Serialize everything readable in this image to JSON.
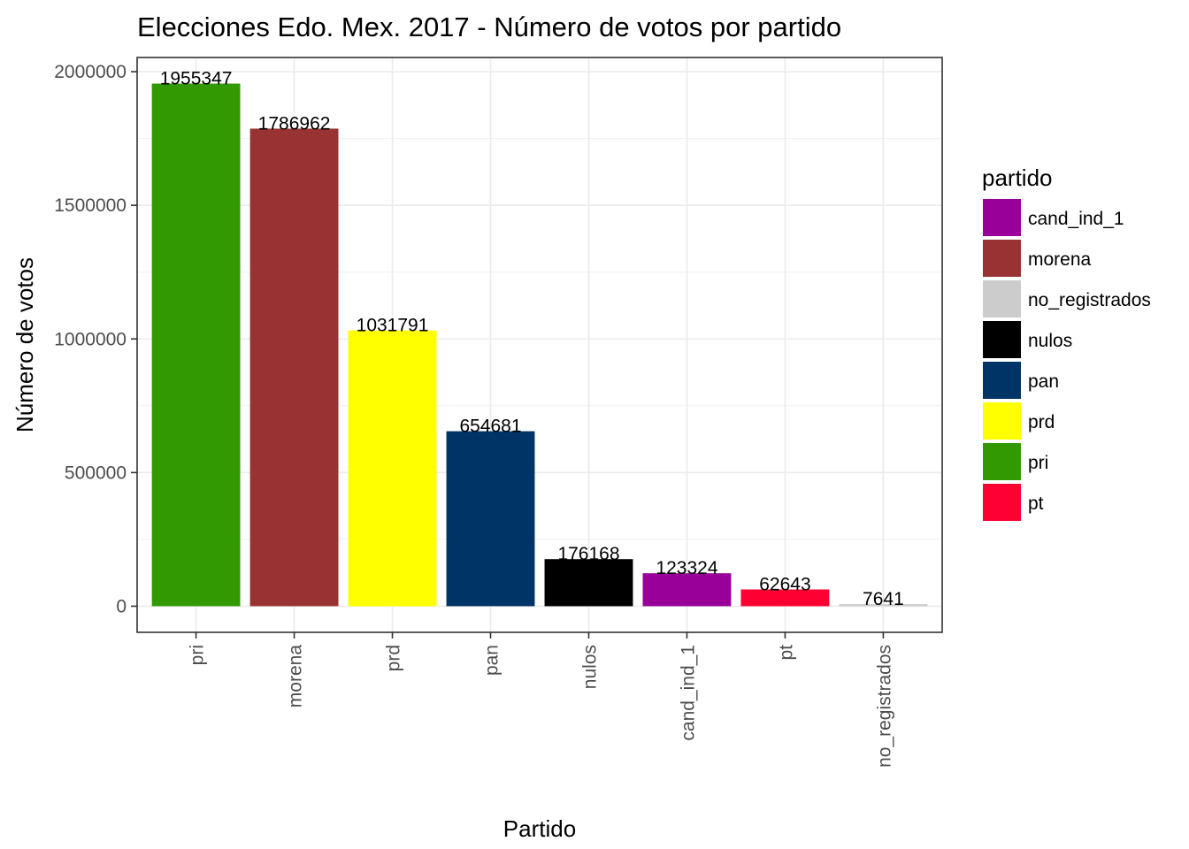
{
  "chart_data": {
    "type": "bar",
    "title": "Elecciones Edo. Mex. 2017 - Número de votos por partido",
    "xlabel": "Partido",
    "ylabel": "Número de votos",
    "categories": [
      "pri",
      "morena",
      "prd",
      "pan",
      "nulos",
      "cand_ind_1",
      "pt",
      "no_registrados"
    ],
    "values": [
      1955347,
      1786962,
      1031791,
      654681,
      176168,
      123324,
      62643,
      7641
    ],
    "value_labels": [
      "1955347",
      "1786962",
      "1031791",
      "654681",
      "176168",
      "123324",
      "62643",
      "7641"
    ],
    "y_ticks": [
      0,
      500000,
      1000000,
      1500000,
      2000000
    ],
    "y_tick_labels": [
      "0",
      "500000",
      "1000000",
      "1500000",
      "2000000"
    ],
    "ylim": [
      -97767,
      2053114
    ],
    "grid": true,
    "legend": {
      "title": "partido",
      "placement": "right",
      "items": [
        {
          "label": "cand_ind_1",
          "color": "#990099"
        },
        {
          "label": "morena",
          "color": "#993333"
        },
        {
          "label": "no_registrados",
          "color": "#cccccc"
        },
        {
          "label": "nulos",
          "color": "#000000"
        },
        {
          "label": "pan",
          "color": "#003366"
        },
        {
          "label": "prd",
          "color": "#ffff00"
        },
        {
          "label": "pri",
          "color": "#339900"
        },
        {
          "label": "pt",
          "color": "#ff0033"
        }
      ]
    },
    "bar_colors": {
      "pri": "#339900",
      "morena": "#993333",
      "prd": "#ffff00",
      "pan": "#003366",
      "nulos": "#000000",
      "cand_ind_1": "#990099",
      "pt": "#ff0033",
      "no_registrados": "#cccccc"
    }
  }
}
